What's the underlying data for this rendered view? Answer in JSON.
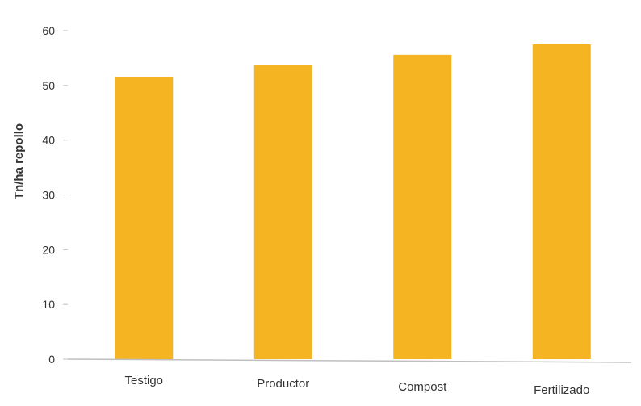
{
  "chart_data": {
    "type": "bar",
    "title": "",
    "xlabel": "",
    "ylabel": "Tn/ha repollo",
    "categories": [
      "Testigo",
      "Productor",
      "Compost",
      "Fertilizado"
    ],
    "values": [
      51.5,
      53.8,
      55.6,
      57.5
    ],
    "ylim": [
      0,
      60
    ],
    "yticks": [
      0,
      10,
      20,
      30,
      40,
      50,
      60
    ],
    "ytick_labels": [
      "0",
      "10",
      "20",
      "30",
      "40",
      "50",
      "60"
    ],
    "grid": false,
    "legend": "none",
    "colors": {
      "bar": "#f5b422",
      "axis": "#bfbfbf"
    }
  }
}
